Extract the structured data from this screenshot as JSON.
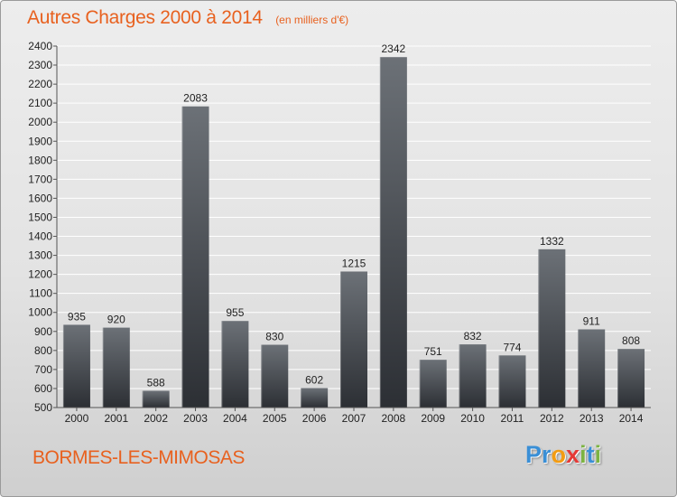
{
  "title": "Autres Charges 2000 à 2014",
  "subtitle": "(en milliers d'€)",
  "commune": "BORMES-LES-MIMOSAS",
  "logo": {
    "text": "Proxiti",
    "letters": [
      {
        "char": "P",
        "color": "#3a8fd6"
      },
      {
        "char": "r",
        "color": "#3a8fd6"
      },
      {
        "char": "o",
        "color": "#f39c12"
      },
      {
        "char": "x",
        "color": "#e53935"
      },
      {
        "char": "i",
        "color": "#7cb342"
      },
      {
        "char": "t",
        "color": "#3a8fd6"
      },
      {
        "char": "i",
        "color": "#7cb342"
      }
    ]
  },
  "colors": {
    "accent": "#e8611f",
    "bar_top": "#6c7177",
    "bar_bottom": "#2c2f34",
    "grid": "#ffffff"
  },
  "chart_data": {
    "type": "bar",
    "categories": [
      "2000",
      "2001",
      "2002",
      "2003",
      "2004",
      "2005",
      "2006",
      "2007",
      "2008",
      "2009",
      "2010",
      "2011",
      "2012",
      "2013",
      "2014"
    ],
    "values": [
      935,
      920,
      588,
      2083,
      955,
      830,
      602,
      1215,
      2342,
      751,
      832,
      774,
      1332,
      911,
      808
    ],
    "title": "Autres Charges 2000 à 2014",
    "subtitle": "(en milliers d'€)",
    "ylim": [
      500,
      2400
    ],
    "ytick_step": 100,
    "grid": true
  }
}
